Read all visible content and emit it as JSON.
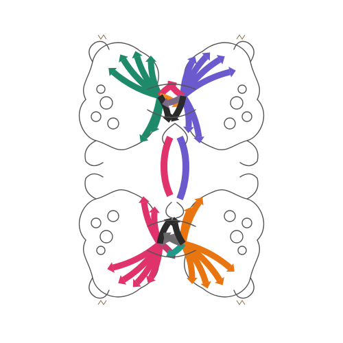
{
  "image": {
    "subject": "protein-ribbon-structure",
    "background_color": "#ffffff",
    "coil_color": "#555555"
  },
  "subunits": [
    {
      "id": "top-left",
      "colors": [
        "#1e8a6a",
        "#e0336b",
        "#f08a1e",
        "#2a2a2a"
      ]
    },
    {
      "id": "top-right",
      "colors": [
        "#6a5acd",
        "#e0336b",
        "#7a6a8a",
        "#2a2a2a"
      ]
    },
    {
      "id": "bottom-left",
      "colors": [
        "#e0336b",
        "#c03a6a",
        "#7a6a7a",
        "#2a2a2a"
      ]
    },
    {
      "id": "bottom-right",
      "colors": [
        "#e8750f",
        "#1e9a8a",
        "#6a6a6a",
        "#2a2a2a"
      ]
    },
    {
      "id": "center-link",
      "colors": [
        "#e0336b",
        "#6a5acd"
      ]
    }
  ]
}
